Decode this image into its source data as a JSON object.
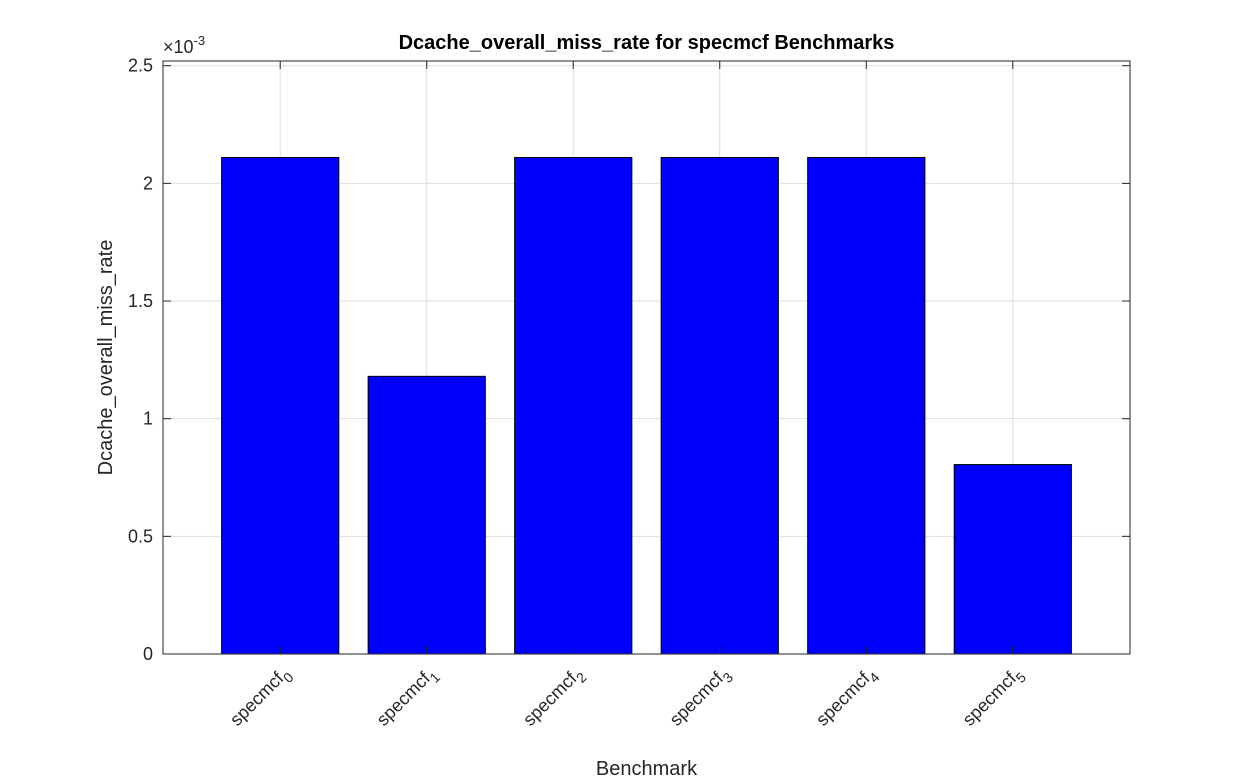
{
  "chart_data": {
    "type": "bar",
    "title": "Dcache_overall_miss_rate for specmcf Benchmarks",
    "xlabel": "Benchmark",
    "ylabel": "Dcache_overall_miss_rate",
    "exponent_base": "×10",
    "exponent_power": "-3",
    "categories": [
      {
        "base": "specmcf",
        "sub": "0"
      },
      {
        "base": "specmcf",
        "sub": "1"
      },
      {
        "base": "specmcf",
        "sub": "2"
      },
      {
        "base": "specmcf",
        "sub": "3"
      },
      {
        "base": "specmcf",
        "sub": "4"
      },
      {
        "base": "specmcf",
        "sub": "5"
      }
    ],
    "values": [
      2.11,
      1.18,
      2.11,
      2.11,
      2.11,
      0.805
    ],
    "value_scale": "1e-3",
    "ylim": [
      0,
      2.52
    ],
    "yticks": [
      0,
      0.5,
      1,
      1.5,
      2,
      2.5
    ],
    "ytick_labels": [
      "0",
      "0.5",
      "1",
      "1.5",
      "2",
      "2.5"
    ],
    "xlim": [
      0.2,
      6.8
    ],
    "grid": true,
    "bar_color": "#0000ff",
    "bar_edge_color": "#000000"
  }
}
